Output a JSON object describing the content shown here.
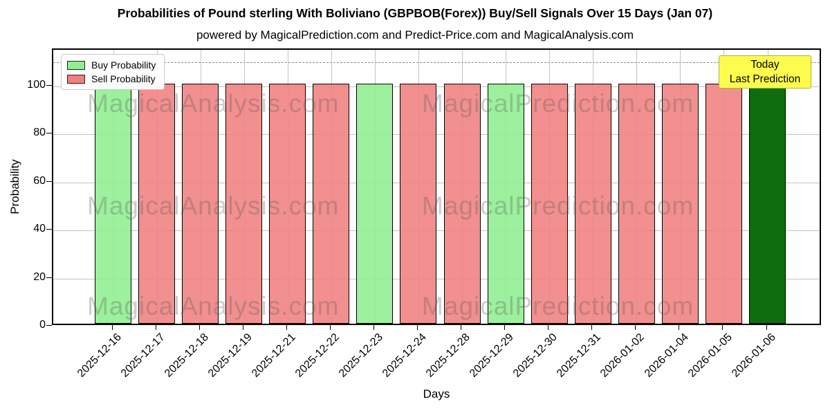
{
  "title": "Probabilities of Pound sterling With Boliviano (GBPBOB(Forex)) Buy/Sell Signals Over 15 Days (Jan 07)",
  "subtitle": "powered by MagicalPrediction.com and Predict-Price.com and MagicalAnalysis.com",
  "legend": {
    "items": [
      {
        "label": "Buy Probability",
        "color": "#90ee90"
      },
      {
        "label": "Sell Probability",
        "color": "#f08080"
      }
    ]
  },
  "annotation_box": {
    "line1": "Today",
    "line2": "Last Prediction",
    "bg_color": "#fcfc4e",
    "border_color": "#b3b32d"
  },
  "watermarks": {
    "left": "MagicalAnalysis.com",
    "right": "MagicalPrediction.com"
  },
  "chart_data": {
    "type": "bar",
    "title": "Probabilities of Pound sterling With Boliviano (GBPBOB(Forex)) Buy/Sell Signals Over 15 Days (Jan 07)",
    "xlabel": "Days",
    "ylabel": "Probability",
    "ylim": [
      0,
      115
    ],
    "yticks": [
      0,
      20,
      40,
      60,
      80,
      100
    ],
    "dashed_line_y": 110,
    "grid": true,
    "legend_position": "upper left",
    "categories": [
      "2025-12-16",
      "2025-12-17",
      "2025-12-18",
      "2025-12-19",
      "2025-12-21",
      "2025-12-22",
      "2025-12-23",
      "2025-12-24",
      "2025-12-28",
      "2025-12-29",
      "2025-12-30",
      "2025-12-31",
      "2026-01-02",
      "2026-01-04",
      "2026-01-05",
      "2026-01-06"
    ],
    "series": [
      {
        "name": "Buy Probability",
        "color": "#90ee90",
        "values": [
          100,
          0,
          0,
          0,
          0,
          0,
          100,
          0,
          0,
          100,
          0,
          0,
          0,
          0,
          0,
          0
        ]
      },
      {
        "name": "Sell Probability",
        "color": "#f08080",
        "values": [
          0,
          100,
          100,
          100,
          100,
          100,
          0,
          100,
          100,
          0,
          100,
          100,
          100,
          100,
          100,
          0
        ]
      },
      {
        "name": "Today Last Prediction",
        "color": "#006400",
        "values": [
          0,
          0,
          0,
          0,
          0,
          0,
          0,
          0,
          0,
          0,
          0,
          0,
          0,
          0,
          0,
          100
        ]
      }
    ],
    "bars": [
      {
        "category": "2025-12-16",
        "value": 100,
        "signal": "buy"
      },
      {
        "category": "2025-12-17",
        "value": 100,
        "signal": "sell"
      },
      {
        "category": "2025-12-18",
        "value": 100,
        "signal": "sell"
      },
      {
        "category": "2025-12-19",
        "value": 100,
        "signal": "sell"
      },
      {
        "category": "2025-12-21",
        "value": 100,
        "signal": "sell"
      },
      {
        "category": "2025-12-22",
        "value": 100,
        "signal": "sell"
      },
      {
        "category": "2025-12-23",
        "value": 100,
        "signal": "buy"
      },
      {
        "category": "2025-12-24",
        "value": 100,
        "signal": "sell"
      },
      {
        "category": "2025-12-28",
        "value": 100,
        "signal": "sell"
      },
      {
        "category": "2025-12-29",
        "value": 100,
        "signal": "buy"
      },
      {
        "category": "2025-12-30",
        "value": 100,
        "signal": "sell"
      },
      {
        "category": "2025-12-31",
        "value": 100,
        "signal": "sell"
      },
      {
        "category": "2026-01-02",
        "value": 100,
        "signal": "sell"
      },
      {
        "category": "2026-01-04",
        "value": 100,
        "signal": "sell"
      },
      {
        "category": "2026-01-05",
        "value": 100,
        "signal": "sell"
      },
      {
        "category": "2026-01-06",
        "value": 100,
        "signal": "today"
      }
    ],
    "bar_colors": {
      "buy": "rgba(144,238,144,0.88)",
      "sell": "rgba(240,128,128,0.88)",
      "today": "rgba(0,100,0,0.94)"
    }
  }
}
